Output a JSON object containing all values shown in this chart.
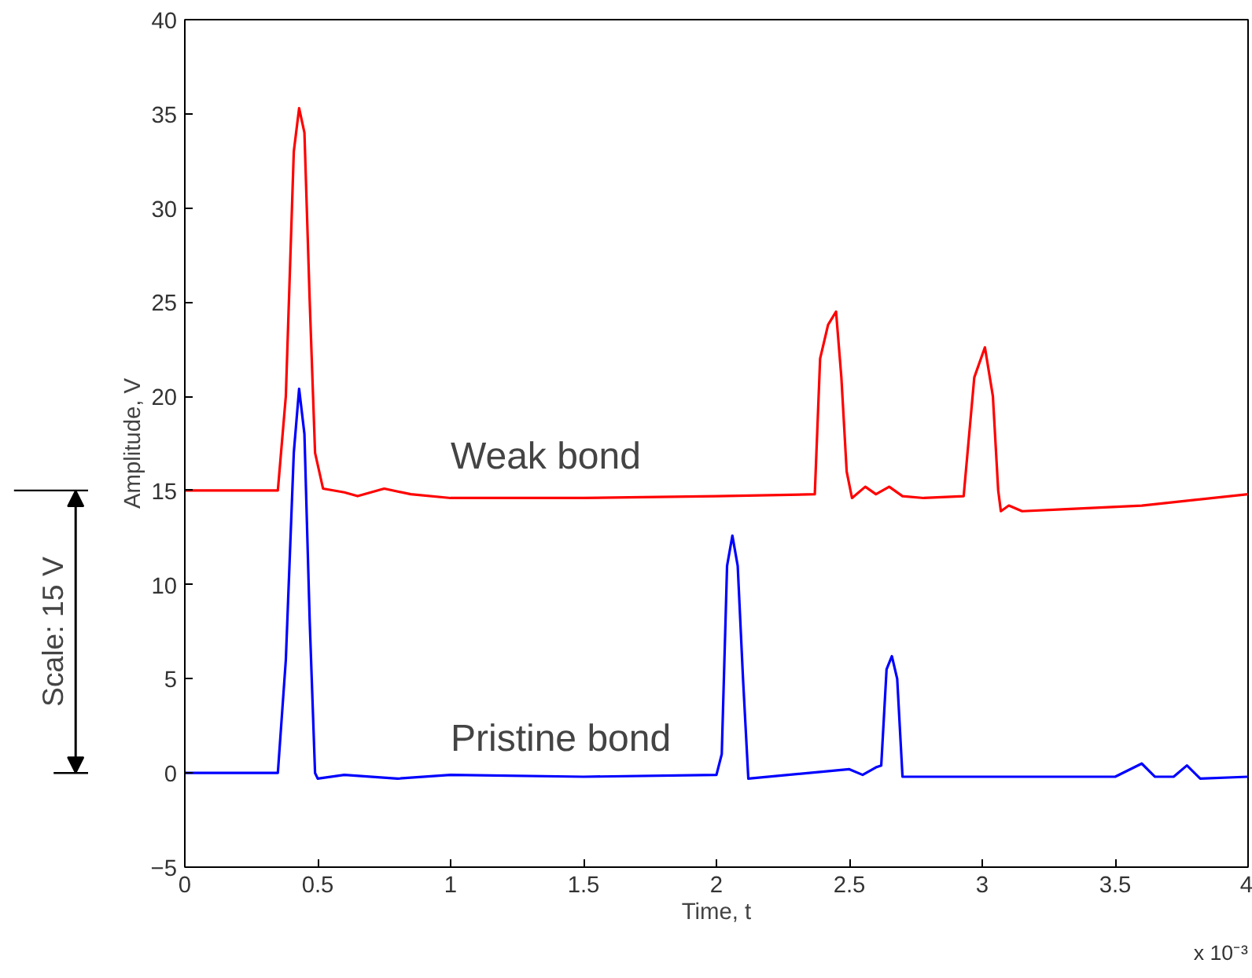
{
  "chart_data": {
    "type": "line",
    "xlabel": "Time, t",
    "ylabel": "Amplitude, V",
    "xlim": [
      0,
      4
    ],
    "ylim": [
      -5,
      40
    ],
    "xticks": [
      0,
      0.5,
      1,
      1.5,
      2,
      2.5,
      3,
      3.5,
      4
    ],
    "yticks": [
      -5,
      0,
      5,
      10,
      15,
      20,
      25,
      30,
      35,
      40
    ],
    "grid": false,
    "marker": "none",
    "line_style": "solid",
    "series": [
      {
        "color": "#ff0000",
        "x": [
          0,
          0.35,
          0.38,
          0.41,
          0.43,
          0.45,
          0.47,
          0.49,
          0.52,
          0.6,
          0.65,
          0.75,
          0.85,
          1.0,
          1.5,
          2.0,
          2.37,
          2.39,
          2.42,
          2.45,
          2.47,
          2.49,
          2.51,
          2.56,
          2.6,
          2.65,
          2.7,
          2.78,
          2.93,
          2.97,
          3.01,
          3.04,
          3.06,
          3.07,
          3.1,
          3.15,
          3.3,
          3.6,
          4.0
        ],
        "values": [
          15,
          15,
          20,
          33,
          35.3,
          34,
          25,
          17,
          15.1,
          14.9,
          14.7,
          15.1,
          14.8,
          14.6,
          14.6,
          14.7,
          14.8,
          22,
          23.8,
          24.5,
          21,
          16,
          14.6,
          15.2,
          14.8,
          15.2,
          14.7,
          14.6,
          14.7,
          21,
          22.6,
          20,
          15,
          13.9,
          14.2,
          13.9,
          14,
          14.2,
          14.8
        ]
      },
      {
        "color": "#0000ff",
        "x": [
          0,
          0.35,
          0.38,
          0.41,
          0.43,
          0.45,
          0.47,
          0.49,
          0.5,
          0.6,
          0.8,
          1.0,
          1.5,
          2.0,
          2.02,
          2.04,
          2.06,
          2.08,
          2.1,
          2.12,
          2.5,
          2.55,
          2.6,
          2.62,
          2.64,
          2.66,
          2.68,
          2.7,
          3.0,
          3.5,
          3.6,
          3.65,
          3.72,
          3.77,
          3.82,
          4.0
        ],
        "values": [
          0,
          0,
          6,
          17,
          20.4,
          18,
          8,
          0,
          -0.3,
          -0.1,
          -0.3,
          -0.1,
          -0.2,
          -0.1,
          1,
          11,
          12.6,
          11,
          5,
          -0.3,
          0.2,
          -0.1,
          0.3,
          0.4,
          5.5,
          6.2,
          5,
          -0.2,
          -0.2,
          -0.2,
          0.5,
          -0.2,
          -0.2,
          0.4,
          -0.3,
          -0.2
        ]
      }
    ],
    "annotations": [
      "Weak bond",
      "Pristine bond",
      "Scale: 15 V",
      "x 10⁻³"
    ]
  }
}
